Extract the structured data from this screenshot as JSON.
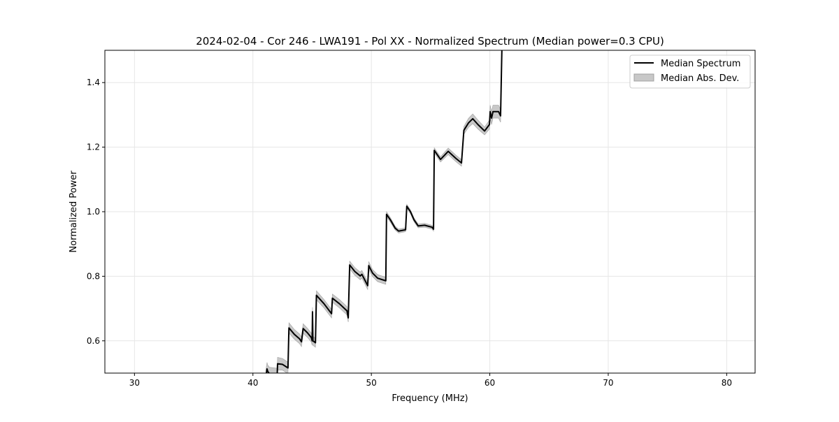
{
  "chart_data": {
    "type": "line",
    "title": "2024-02-04 - Cor 246 - LWA191 - Pol XX - Normalized Spectrum (Median power=0.3 CPU)",
    "xlabel": "Frequency (MHz)",
    "ylabel": "Normalized Power",
    "xlim": [
      27.5,
      82.4
    ],
    "ylim": [
      0.5,
      1.5
    ],
    "xticks": [
      30,
      40,
      50,
      60,
      70,
      80
    ],
    "yticks": [
      0.6,
      0.8,
      1.0,
      1.2,
      1.4
    ],
    "ytick_labels": [
      "0.6",
      "0.8",
      "1.0",
      "1.2",
      "1.4"
    ],
    "grid": true,
    "legend_position": "top-right",
    "legend": [
      "Median Spectrum",
      "Median Abs. Dev."
    ],
    "colors": {
      "line": "#000000",
      "band": "#c8c8c8",
      "band_edge": "#a0a0a0",
      "grid": "#e6e6e6"
    },
    "series": [
      {
        "name": "Median Spectrum",
        "x": [
          41.1,
          41.19,
          41.25,
          41.4,
          42.05,
          42.08,
          42.5,
          42.96,
          43.04,
          43.5,
          43.94,
          44.1,
          44.24,
          44.6,
          44.93,
          45.0,
          45.03,
          45.07,
          45.28,
          45.36,
          46.0,
          46.64,
          46.71,
          47.3,
          47.94,
          48.05,
          48.17,
          48.6,
          49.06,
          49.2,
          49.69,
          49.78,
          50.1,
          50.53,
          51.22,
          51.28,
          51.6,
          52.01,
          52.3,
          52.89,
          52.99,
          53.3,
          53.6,
          53.95,
          54.5,
          55.12,
          55.25,
          55.31,
          55.84,
          56.49,
          57.14,
          57.61,
          57.81,
          58.2,
          58.56,
          59.0,
          59.56,
          59.97,
          60.03,
          60.15,
          60.27,
          60.74,
          60.91,
          61.03
        ],
        "y": [
          0.49,
          0.513,
          0.505,
          0.498,
          0.495,
          0.529,
          0.527,
          0.516,
          0.64,
          0.62,
          0.606,
          0.597,
          0.638,
          0.625,
          0.61,
          0.6,
          0.69,
          0.6,
          0.594,
          0.741,
          0.715,
          0.684,
          0.732,
          0.715,
          0.693,
          0.671,
          0.835,
          0.815,
          0.801,
          0.806,
          0.771,
          0.833,
          0.81,
          0.794,
          0.786,
          0.992,
          0.975,
          0.949,
          0.94,
          0.944,
          1.017,
          1.0,
          0.975,
          0.956,
          0.958,
          0.952,
          0.946,
          1.19,
          1.162,
          1.187,
          1.165,
          1.151,
          1.252,
          1.275,
          1.288,
          1.27,
          1.25,
          1.27,
          1.31,
          1.29,
          1.31,
          1.31,
          1.297,
          1.52
        ]
      },
      {
        "name": "Median Abs. Dev.",
        "mad": [
          0.02,
          0.02,
          0.02,
          0.02,
          0.02,
          0.02,
          0.018,
          0.018,
          0.016,
          0.015,
          0.015,
          0.015,
          0.015,
          0.014,
          0.014,
          0.014,
          0.014,
          0.014,
          0.014,
          0.014,
          0.013,
          0.013,
          0.013,
          0.013,
          0.013,
          0.013,
          0.012,
          0.012,
          0.012,
          0.012,
          0.012,
          0.012,
          0.011,
          0.011,
          0.011,
          0.008,
          0.007,
          0.006,
          0.006,
          0.006,
          0.006,
          0.006,
          0.006,
          0.006,
          0.006,
          0.006,
          0.006,
          0.008,
          0.008,
          0.01,
          0.01,
          0.01,
          0.012,
          0.014,
          0.015,
          0.014,
          0.012,
          0.014,
          0.02,
          0.02,
          0.02,
          0.02,
          0.02,
          0.02
        ]
      }
    ]
  }
}
